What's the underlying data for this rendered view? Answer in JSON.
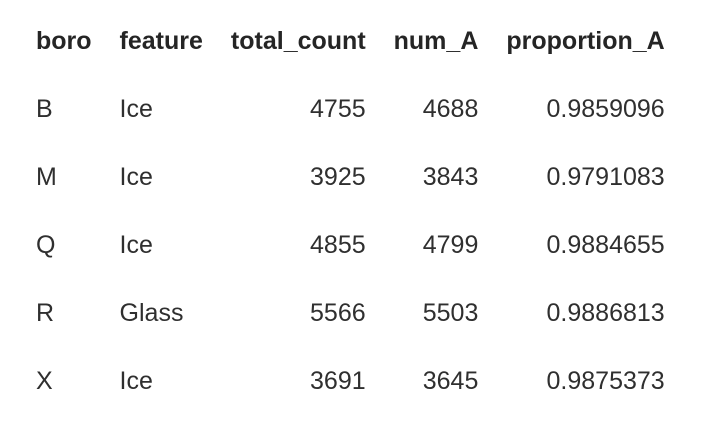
{
  "table": {
    "columns": [
      {
        "key": "boro",
        "label": "boro",
        "align": "left"
      },
      {
        "key": "feature",
        "label": "feature",
        "align": "left"
      },
      {
        "key": "total_count",
        "label": "total_count",
        "align": "right"
      },
      {
        "key": "num_A",
        "label": "num_A",
        "align": "right"
      },
      {
        "key": "proportion_A",
        "label": "proportion_A",
        "align": "right"
      }
    ],
    "rows": [
      {
        "boro": "B",
        "feature": "Ice",
        "total_count": "4755",
        "num_A": "4688",
        "proportion_A": "0.9859096"
      },
      {
        "boro": "M",
        "feature": "Ice",
        "total_count": "3925",
        "num_A": "3843",
        "proportion_A": "0.9791083"
      },
      {
        "boro": "Q",
        "feature": "Ice",
        "total_count": "4855",
        "num_A": "4799",
        "proportion_A": "0.9884655"
      },
      {
        "boro": "R",
        "feature": "Glass",
        "total_count": "5566",
        "num_A": "5503",
        "proportion_A": "0.9886813"
      },
      {
        "boro": "X",
        "feature": "Ice",
        "total_count": "3691",
        "num_A": "3645",
        "proportion_A": "0.9875373"
      }
    ]
  }
}
